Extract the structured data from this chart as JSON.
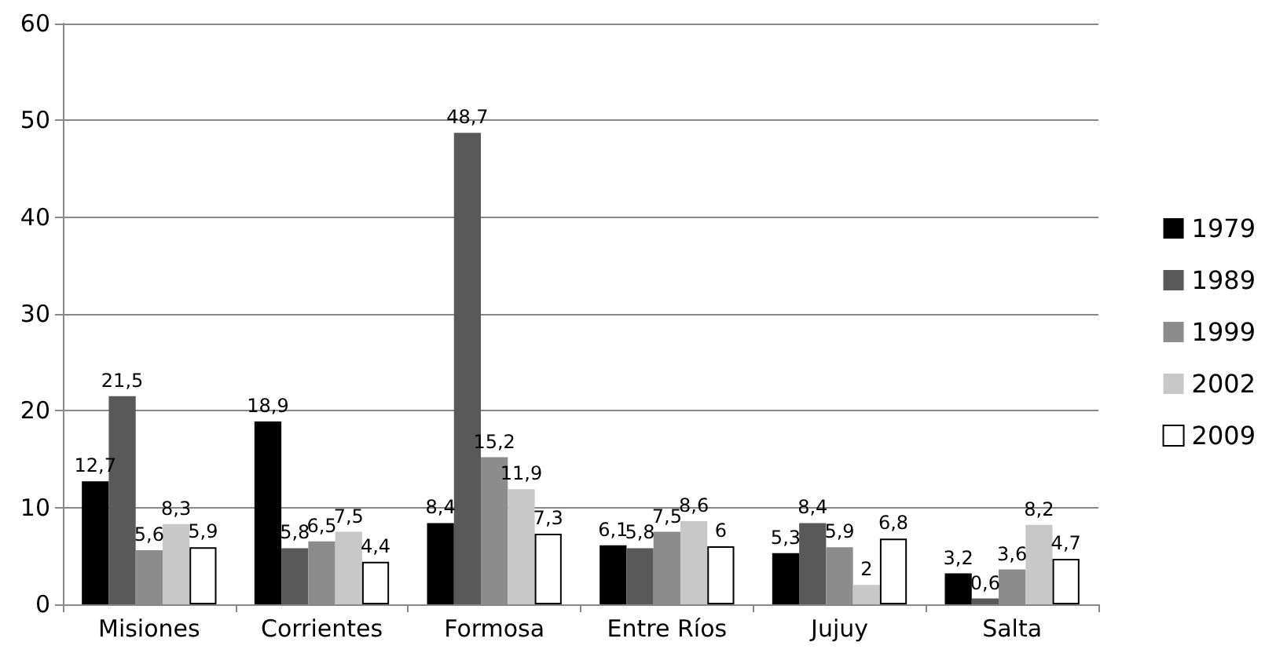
{
  "chart_data": {
    "type": "bar",
    "categories": [
      "Misiones",
      "Corrientes",
      "Formosa",
      "Entre Ríos",
      "Jujuy",
      "Salta"
    ],
    "series": [
      {
        "name": "1979",
        "color": "#000000",
        "values": [
          12.7,
          18.9,
          8.4,
          6.1,
          5.3,
          3.2
        ],
        "value_labels": [
          "12,7",
          "18,9",
          "8,4",
          "6,1",
          "5,3",
          "3,2"
        ]
      },
      {
        "name": "1989",
        "color": "#595959",
        "values": [
          21.5,
          5.8,
          48.7,
          5.8,
          8.4,
          0.6
        ],
        "value_labels": [
          "21,5",
          "5,8",
          "48,7",
          "5,8",
          "8,4",
          "0,6"
        ]
      },
      {
        "name": "1999",
        "color": "#8c8c8c",
        "values": [
          5.6,
          6.5,
          15.2,
          7.5,
          5.9,
          3.6
        ],
        "value_labels": [
          "5,6",
          "6,5",
          "15,2",
          "7,5",
          "5,9",
          "3,6"
        ]
      },
      {
        "name": "2002",
        "color": "#c8c8c8",
        "values": [
          8.3,
          7.5,
          11.9,
          8.6,
          2,
          8.2
        ],
        "value_labels": [
          "8,3",
          "7,5",
          "11,9",
          "8,6",
          "2",
          "8,2"
        ]
      },
      {
        "name": "2009",
        "color": "#ffffff",
        "values": [
          5.9,
          4.4,
          7.3,
          6,
          6.8,
          4.7
        ],
        "value_labels": [
          "5,9",
          "4,4",
          "7,3",
          "6",
          "6,8",
          "4,7"
        ]
      }
    ],
    "ylim": [
      0,
      60
    ],
    "yticks": [
      0,
      10,
      20,
      30,
      40,
      50,
      60
    ],
    "grid": "y",
    "legend": "right"
  }
}
